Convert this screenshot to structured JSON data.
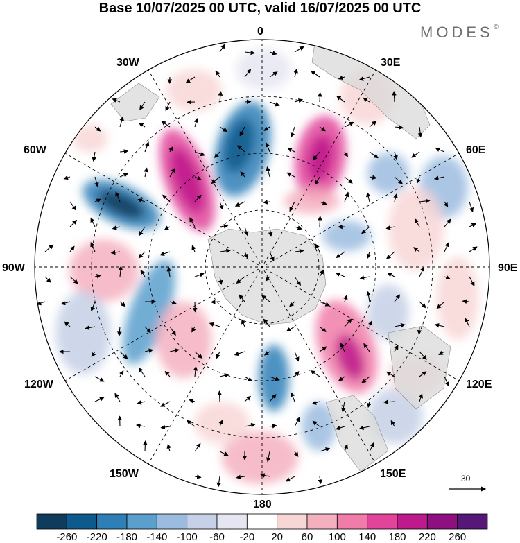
{
  "title": "Base 10/07/2025 00 UTC, valid 16/07/2025 00 UTC",
  "brand": {
    "name": "MODES",
    "mark": "©"
  },
  "longitude_labels": {
    "lon_0": "0",
    "lon_30e": "30E",
    "lon_60e": "60E",
    "lon_90e": "90E",
    "lon_120e": "120E",
    "lon_150e": "150E",
    "lon_180": "180",
    "lon_150w": "150W",
    "lon_120w": "120W",
    "lon_90w": "90W",
    "lon_60w": "60W",
    "lon_30w": "30W"
  },
  "map": {
    "projection": "south polar stereographic",
    "field": "anomaly (shaded) with wind vectors"
  },
  "reference_vector": {
    "label": "30"
  },
  "colorbar": {
    "colors": [
      "#0f3b5c",
      "#0f5a8c",
      "#2f7fb7",
      "#5b9fcc",
      "#9cbcdf",
      "#c6d0e6",
      "#e6e6f2",
      "#ffffff",
      "#f8d6d6",
      "#f5b0bf",
      "#f07ca9",
      "#e2449a",
      "#be1a8c",
      "#8d0f80",
      "#551778"
    ],
    "tick_labels": [
      "-260",
      "-220",
      "-180",
      "-140",
      "-100",
      "-60",
      "-20",
      "20",
      "60",
      "100",
      "140",
      "180",
      "220",
      "260"
    ]
  },
  "colors": {
    "positive": "#f07ca9",
    "negative": "#2f7fb7",
    "land": "#d9d9d9"
  }
}
